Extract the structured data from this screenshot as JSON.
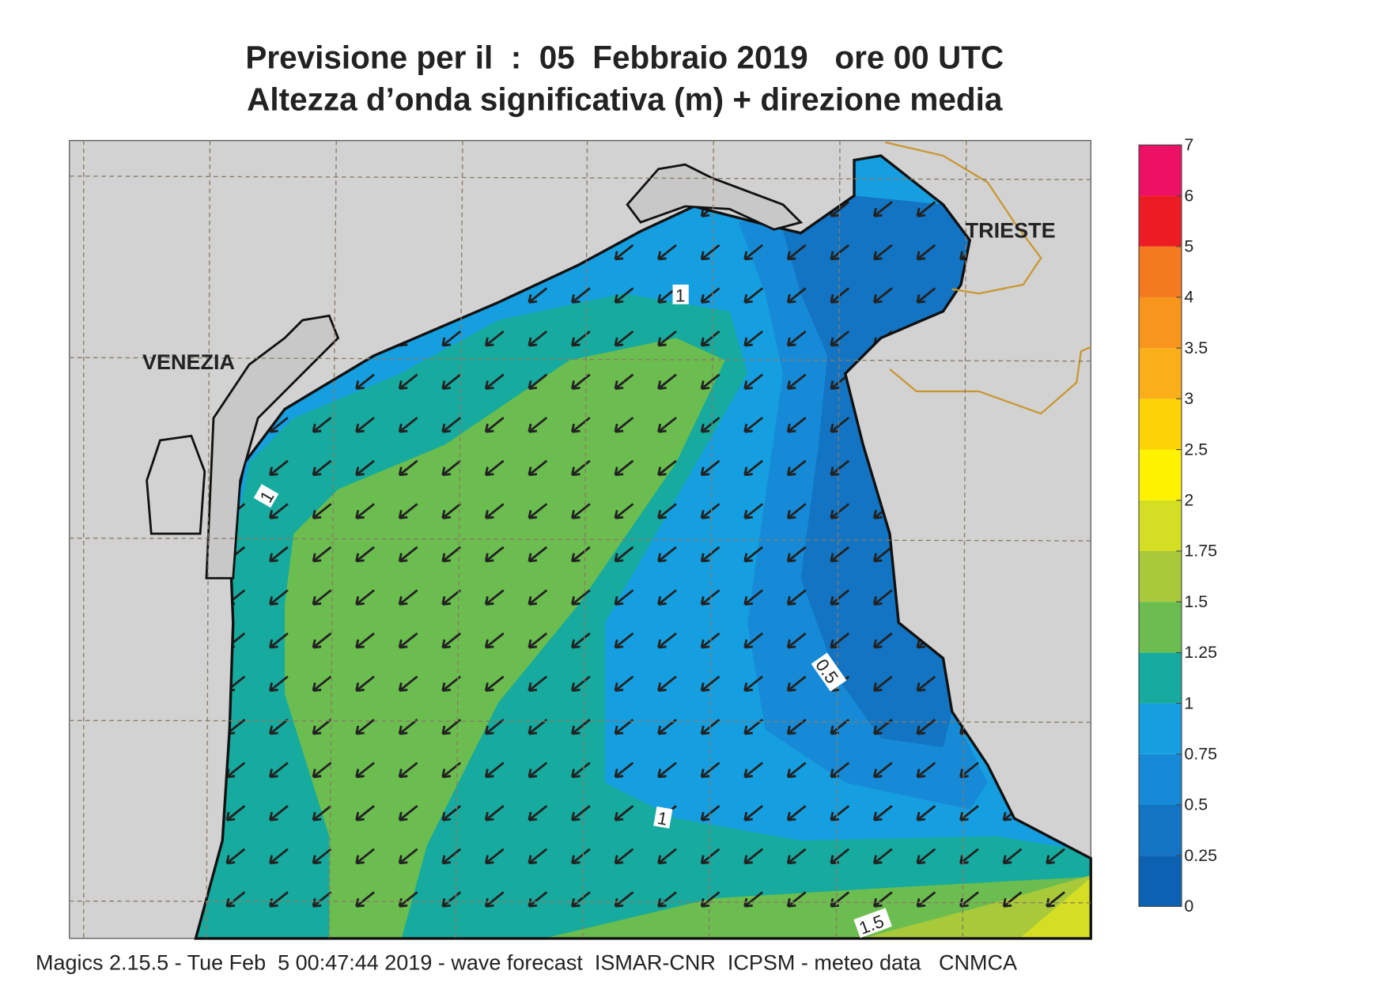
{
  "title": [
    "Previsione per il  :  05  Febbraio 2019   ore 00 UTC",
    "Altezza d’onda significativa (m) + direzione media"
  ],
  "map": {
    "cities": [
      "VENEZIA",
      "TRIESTE"
    ],
    "contour_labels": [
      "1",
      "1",
      "0.5",
      "1",
      "1.5"
    ]
  },
  "legend": {
    "levels": [
      0,
      0.25,
      0.5,
      0.75,
      1,
      1.25,
      1.5,
      1.75,
      2,
      2.5,
      3,
      3.5,
      4,
      5,
      6,
      7
    ],
    "colors": [
      "#0c62b2",
      "#1274c2",
      "#168ad6",
      "#169fe0",
      "#17aa9e",
      "#6cbd4f",
      "#a8c93a",
      "#d4df24",
      "#fff200",
      "#fcd405",
      "#f9ae1a",
      "#f7951d",
      "#f47a20",
      "#ed1c24",
      "#ec1164"
    ]
  },
  "footer": "Magics 2.15.5 - Tue Feb  5 00:47:44 2019 - wave forecast  ISMAR-CNR  ICPSM - meteo data   CNMCA"
}
